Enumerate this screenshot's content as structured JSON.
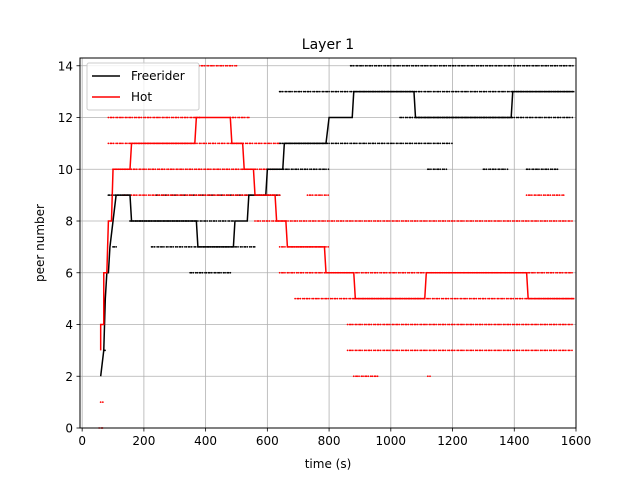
{
  "chart_data": {
    "type": "line",
    "title": "Layer 1",
    "xlabel": "time (s)",
    "ylabel": "peer number",
    "xlim": [
      -7,
      1600
    ],
    "ylim": [
      0,
      14.3
    ],
    "xticks": [
      0,
      200,
      400,
      600,
      800,
      1000,
      1200,
      1400,
      1600
    ],
    "xtick_labels": [
      "0",
      "200",
      "400",
      "600",
      "800",
      "1000",
      "1200",
      "1400",
      "1600"
    ],
    "yticks": [
      0,
      2,
      4,
      6,
      8,
      10,
      12,
      14
    ],
    "ytick_labels": [
      "0",
      "2",
      "4",
      "6",
      "8",
      "10",
      "12",
      "14"
    ],
    "grid": true,
    "legend": "top-left",
    "series": [
      {
        "name": "Freerider",
        "color": "#000000",
        "step": [
          [
            60,
            2
          ],
          [
            70,
            3
          ],
          [
            75,
            5
          ],
          [
            80,
            6
          ],
          [
            85,
            6
          ],
          [
            90,
            7
          ],
          [
            100,
            8
          ],
          [
            110,
            9
          ],
          [
            120,
            9
          ],
          [
            155,
            9
          ],
          [
            160,
            8
          ],
          [
            370,
            8
          ],
          [
            375,
            7
          ],
          [
            490,
            7
          ],
          [
            495,
            8
          ],
          [
            535,
            8
          ],
          [
            540,
            9
          ],
          [
            595,
            9
          ],
          [
            600,
            10
          ],
          [
            650,
            10
          ],
          [
            655,
            11
          ],
          [
            790,
            11
          ],
          [
            800,
            12
          ],
          [
            875,
            12
          ],
          [
            880,
            13
          ],
          [
            1075,
            13
          ],
          [
            1080,
            12
          ],
          [
            1390,
            12
          ],
          [
            1395,
            13
          ],
          [
            1595,
            13
          ]
        ],
        "scatter_bands": [
          {
            "y": 13,
            "ranges": [
              [
                640,
                1590
              ]
            ]
          },
          {
            "y": 12,
            "ranges": [
              [
                1030,
                1590
              ]
            ]
          },
          {
            "y": 11,
            "ranges": [
              [
                640,
                1200
              ]
            ]
          },
          {
            "y": 10,
            "ranges": [
              [
                600,
                800
              ],
              [
                1120,
                1180
              ],
              [
                1300,
                1380
              ],
              [
                1440,
                1540
              ]
            ]
          },
          {
            "y": 9,
            "ranges": [
              [
                85,
                160
              ],
              [
                240,
                640
              ]
            ]
          },
          {
            "y": 8,
            "ranges": [
              [
                155,
                490
              ]
            ]
          },
          {
            "y": 7,
            "ranges": [
              [
                100,
                110
              ],
              [
                225,
                560
              ]
            ]
          },
          {
            "y": 6,
            "ranges": [
              [
                350,
                480
              ]
            ]
          },
          {
            "y": 3,
            "ranges": [
              [
                70,
                75
              ]
            ]
          },
          {
            "y": 14,
            "ranges": [
              [
                870,
                1590
              ]
            ]
          }
        ]
      },
      {
        "name": "Hot",
        "color": "#ff0000",
        "step": [
          [
            60,
            3
          ],
          [
            60,
            4
          ],
          [
            70,
            4
          ],
          [
            70,
            6
          ],
          [
            75,
            6
          ],
          [
            80,
            6
          ],
          [
            85,
            8
          ],
          [
            95,
            8
          ],
          [
            100,
            10
          ],
          [
            155,
            10
          ],
          [
            160,
            11
          ],
          [
            365,
            11
          ],
          [
            370,
            12
          ],
          [
            480,
            12
          ],
          [
            485,
            11
          ],
          [
            520,
            11
          ],
          [
            525,
            10
          ],
          [
            555,
            10
          ],
          [
            560,
            9
          ],
          [
            625,
            9
          ],
          [
            630,
            8
          ],
          [
            660,
            8
          ],
          [
            665,
            7
          ],
          [
            785,
            7
          ],
          [
            790,
            6
          ],
          [
            880,
            6
          ],
          [
            885,
            5
          ],
          [
            1110,
            5
          ],
          [
            1115,
            6
          ],
          [
            1440,
            6
          ],
          [
            1445,
            5
          ],
          [
            1595,
            5
          ]
        ],
        "scatter_bands": [
          {
            "y": 14,
            "ranges": [
              [
                380,
                500
              ]
            ]
          },
          {
            "y": 12,
            "ranges": [
              [
                85,
                380
              ],
              [
                480,
                540
              ]
            ]
          },
          {
            "y": 11,
            "ranges": [
              [
                85,
                640
              ]
            ]
          },
          {
            "y": 10,
            "ranges": [
              [
                100,
                630
              ]
            ]
          },
          {
            "y": 9,
            "ranges": [
              [
                130,
                640
              ],
              [
                730,
                800
              ],
              [
                1440,
                1560
              ]
            ]
          },
          {
            "y": 8,
            "ranges": [
              [
                560,
                1590
              ]
            ]
          },
          {
            "y": 7,
            "ranges": [
              [
                640,
                800
              ]
            ]
          },
          {
            "y": 6,
            "ranges": [
              [
                640,
                1590
              ]
            ]
          },
          {
            "y": 5,
            "ranges": [
              [
                690,
                1590
              ]
            ]
          },
          {
            "y": 4,
            "ranges": [
              [
                860,
                1590
              ]
            ]
          },
          {
            "y": 3,
            "ranges": [
              [
                860,
                1590
              ]
            ]
          },
          {
            "y": 2,
            "ranges": [
              [
                880,
                960
              ],
              [
                1120,
                1130
              ]
            ]
          },
          {
            "y": 1,
            "ranges": [
              [
                60,
                70
              ]
            ]
          },
          {
            "y": 0,
            "ranges": [
              [
                55,
                70
              ]
            ]
          }
        ]
      }
    ]
  }
}
